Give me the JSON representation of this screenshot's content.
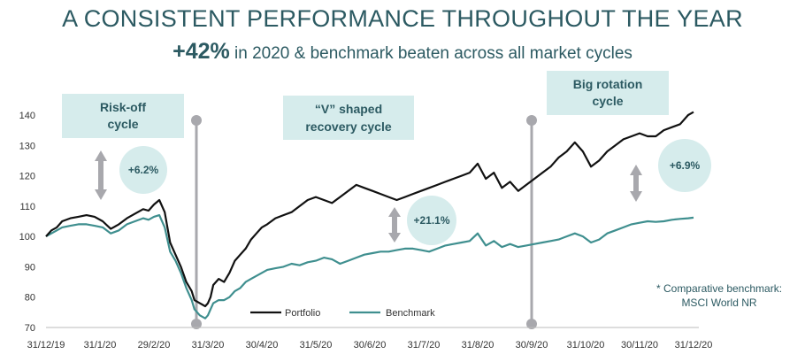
{
  "header": {
    "title": "A CONSISTENT PERFORMANCE THROUGHOUT THE YEAR",
    "subtitle_highlight": "+42%",
    "subtitle_rest": "in 2020 & benchmark beaten across all market cycles"
  },
  "colors": {
    "portfolio": "#111111",
    "benchmark": "#3f8f8f",
    "accent": "#2c5a62",
    "box": "#d6ecec",
    "divider": "#a8a8ad"
  },
  "chart_data": {
    "type": "line",
    "title": "A CONSISTENT PERFORMANCE THROUGHOUT THE YEAR",
    "ylim": [
      70,
      140
    ],
    "y_ticks": [
      "70",
      "80",
      "90",
      "100",
      "110",
      "120",
      "130",
      "140"
    ],
    "x_ticks": [
      "31/12/19",
      "31/1/20",
      "29/2/20",
      "31/3/20",
      "30/4/20",
      "31/5/20",
      "30/6/20",
      "31/7/20",
      "31/8/20",
      "30/9/20",
      "31/10/20",
      "30/11/20",
      "31/12/20"
    ],
    "x": [
      0,
      0.1,
      0.2,
      0.3,
      0.45,
      0.6,
      0.75,
      0.9,
      1.05,
      1.2,
      1.35,
      1.5,
      1.65,
      1.8,
      1.9,
      2.0,
      2.1,
      2.2,
      2.3,
      2.4,
      2.5,
      2.6,
      2.7,
      2.75,
      2.85,
      2.95,
      3.0,
      3.05,
      3.1,
      3.2,
      3.3,
      3.4,
      3.5,
      3.6,
      3.7,
      3.8,
      3.9,
      4.0,
      4.1,
      4.25,
      4.4,
      4.55,
      4.7,
      4.85,
      5.0,
      5.15,
      5.3,
      5.45,
      5.6,
      5.75,
      5.9,
      6.05,
      6.2,
      6.35,
      6.5,
      6.65,
      6.8,
      6.95,
      7.1,
      7.25,
      7.4,
      7.55,
      7.7,
      7.85,
      8.0,
      8.15,
      8.3,
      8.45,
      8.6,
      8.75,
      8.9,
      9.05,
      9.2,
      9.35,
      9.5,
      9.65,
      9.8,
      9.95,
      10.1,
      10.25,
      10.4,
      10.55,
      10.7,
      10.85,
      11.0,
      11.15,
      11.3,
      11.45,
      11.6,
      11.75,
      11.9,
      12.0
    ],
    "series": [
      {
        "name": "Portfolio",
        "values": [
          100,
          102,
          103,
          105,
          106,
          106.5,
          107,
          106.5,
          105,
          102.5,
          104,
          106,
          107.5,
          109,
          108.5,
          110.5,
          112,
          108,
          98,
          94,
          90,
          85,
          82,
          79,
          78,
          77,
          78,
          80,
          84,
          86,
          85,
          88,
          92,
          94,
          96,
          99,
          101,
          103,
          104,
          106,
          107,
          108,
          110,
          112,
          113,
          112,
          111,
          113,
          115,
          117,
          116,
          115,
          114,
          113,
          112,
          113,
          114,
          115,
          116,
          117,
          118,
          119,
          120,
          121,
          124,
          119,
          121,
          116,
          118,
          115,
          117,
          119,
          121,
          123,
          126,
          128,
          131,
          128,
          123,
          125,
          128,
          130,
          132,
          133,
          134,
          133,
          133,
          135,
          136,
          137,
          140,
          141
        ]
      },
      {
        "name": "Benchmark",
        "values": [
          100,
          101,
          102,
          103,
          103.5,
          104,
          104,
          103.5,
          103,
          101,
          102,
          104,
          105,
          106,
          105.5,
          106.5,
          107,
          103,
          95,
          92,
          88,
          83,
          79,
          76,
          74,
          73,
          74,
          76,
          78,
          79,
          79,
          80,
          82,
          83,
          85,
          86,
          87,
          88,
          89,
          89.5,
          90,
          91,
          90.5,
          91.5,
          92,
          93,
          92.5,
          91,
          92,
          93,
          94,
          94.5,
          95,
          95,
          95.5,
          96,
          96,
          95.5,
          95,
          96,
          97,
          97.5,
          98,
          98.5,
          101,
          97,
          98.5,
          96.5,
          97.5,
          96.5,
          97,
          97.5,
          98,
          98.5,
          99,
          100,
          101,
          100,
          98,
          99,
          101,
          102,
          103,
          104,
          104.5,
          105,
          104.8,
          105,
          105.5,
          105.8,
          106,
          106.2
        ]
      }
    ],
    "cycles": [
      {
        "label_lines": [
          "Risk-off",
          "cycle"
        ],
        "outperformance": "+6.2%"
      },
      {
        "label_lines": [
          "“V” shaped",
          "recovery cycle"
        ],
        "outperformance": "+21.1%"
      },
      {
        "label_lines": [
          "Big rotation",
          "cycle"
        ],
        "outperformance": "+6.9%"
      }
    ],
    "legend": [
      "Portfolio",
      "Benchmark"
    ],
    "legend_position": "bottom-left",
    "grid": false,
    "note_lines": [
      "* Comparative benchmark:",
      "MSCI World NR"
    ]
  }
}
